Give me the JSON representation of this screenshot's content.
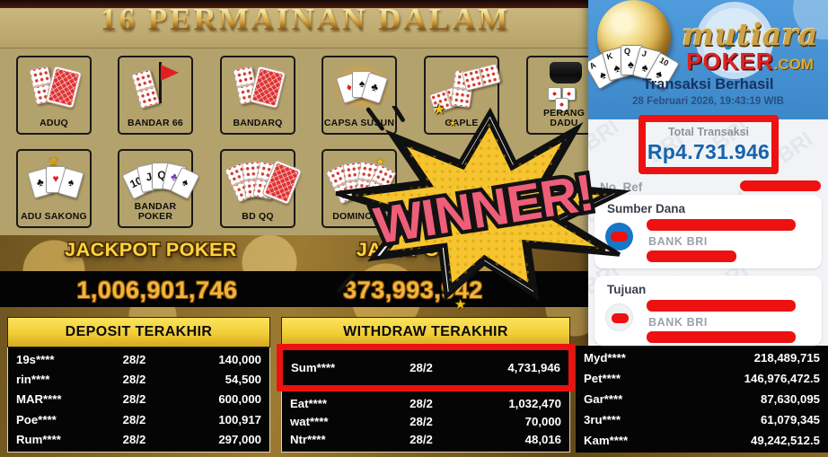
{
  "colors": {
    "accent_red": "#ee1111",
    "gold_number": "#f3b43e",
    "jackpot_yellow": "#ffd43e",
    "tan_bg": "#b3a26b",
    "panel_blue": "#4694d4",
    "total_blue": "#1563ae",
    "winner_pink": "#ef5e78",
    "burst_yellow": "#f6c42e"
  },
  "main": {
    "title": "16 PERMAINAN DALAM",
    "winner_text": "WINNER!",
    "games": [
      {
        "label": "ADUQ",
        "icon": "domino-card-icon"
      },
      {
        "label": "BANDAR 66",
        "icon": "domino-flag-icon"
      },
      {
        "label": "BANDARQ",
        "icon": "domino-card-icon"
      },
      {
        "label": "CAPSA SUSUN",
        "icon": "cards-glow-icon"
      },
      {
        "label": "GAPLE",
        "icon": "domino-zigzag-icon"
      },
      {
        "label": "PERANG DADU",
        "icon": "dice-cup-icon"
      },
      {
        "label": "ADU SAKONG",
        "icon": "cards-crown-icon"
      },
      {
        "label": "BANDAR POKER",
        "icon": "royal-flush-icon"
      },
      {
        "label": "BD QQ",
        "icon": "domino-fan-card-icon"
      },
      {
        "label": "DOMINO 99",
        "icon": "domino-fan-icon"
      }
    ],
    "jackpots": [
      {
        "label": "JACKPOT POKER",
        "value": "1,006,901,746"
      },
      {
        "label": "JACKPOT",
        "value": "373,993,942"
      }
    ],
    "tables": [
      {
        "title": "DEPOSIT TERAKHIR",
        "rows": [
          [
            "19s****",
            "28/2",
            "140,000"
          ],
          [
            "rin****",
            "28/2",
            "54,500"
          ],
          [
            "MAR****",
            "28/2",
            "600,000"
          ],
          [
            "Poe****",
            "28/2",
            "100,917"
          ],
          [
            "Rum****",
            "28/2",
            "297,000"
          ]
        ]
      },
      {
        "title": "WITHDRAW TERAKHIR",
        "highlighted_row": 0,
        "rows": [
          [
            "Sum****",
            "28/2",
            "4,731,946"
          ],
          [
            "Eat****",
            "28/2",
            "1,032,470"
          ],
          [
            "wat****",
            "28/2",
            "70,000"
          ],
          [
            "Ntr****",
            "28/2",
            "48,016"
          ]
        ]
      },
      {
        "title": "",
        "rows": [
          [
            "Myd****",
            "218,489,715"
          ],
          [
            "Pet****",
            "146,976,472.5"
          ],
          [
            "Gar****",
            "87,630,095"
          ],
          [
            "3ru****",
            "61,079,345"
          ],
          [
            "Kam****",
            "49,242,512.5"
          ]
        ]
      }
    ]
  },
  "receipt": {
    "brand": {
      "script": "mutiara",
      "word": "POKER",
      "tld": ".COM",
      "card_letters": [
        "A",
        "K",
        "Q",
        "J",
        "10"
      ]
    },
    "status": "Transaksi Berhasil",
    "datetime": "28 Februari 2026, 19:43:19 WIB",
    "total_label": "Total Transaksi",
    "total_value": "Rp4.731.946",
    "ref_label": "No. Ref",
    "sections": [
      {
        "title": "Sumber Dana",
        "bank": "BANK BRI"
      },
      {
        "title": "Tujuan",
        "bank": "BANK BRI"
      }
    ]
  }
}
